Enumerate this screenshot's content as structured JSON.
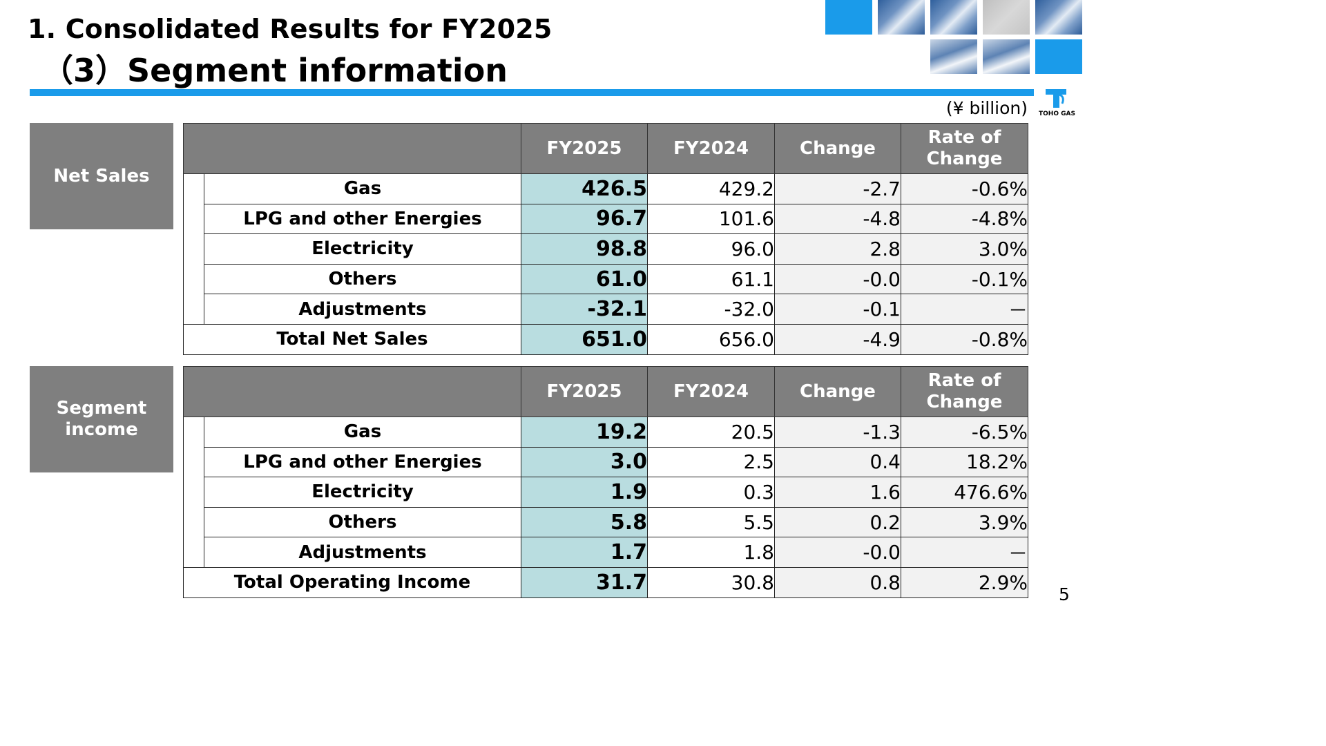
{
  "title": {
    "line1": "1.  Consolidated Results for FY2025",
    "line2": "（3）Segment information"
  },
  "logo": {
    "text": "TOHO GAS",
    "icon": "toho-gas-logo-icon"
  },
  "unit_label": "(¥ billion)",
  "page_number": "5",
  "colors": {
    "accent": "#1a9bea",
    "header_grey": "#7f7f7f",
    "current_year": "#b9dde0",
    "change_bg": "#f2f2f2"
  },
  "net_sales": {
    "label": "Net Sales",
    "headers": [
      "FY2025",
      "FY2024",
      "Change",
      "Rate of Change"
    ],
    "rows": [
      {
        "name": "Gas",
        "fy2025": "426.5",
        "fy2024": "429.2",
        "change": "-2.7",
        "rate": "-0.6%"
      },
      {
        "name": "LPG and other Energies",
        "fy2025": "96.7",
        "fy2024": "101.6",
        "change": "-4.8",
        "rate": "-4.8%"
      },
      {
        "name": "Electricity",
        "fy2025": "98.8",
        "fy2024": "96.0",
        "change": "2.8",
        "rate": "3.0%"
      },
      {
        "name": "Others",
        "fy2025": "61.0",
        "fy2024": "61.1",
        "change": "-0.0",
        "rate": "-0.1%"
      },
      {
        "name": "Adjustments",
        "fy2025": "-32.1",
        "fy2024": "-32.0",
        "change": "-0.1",
        "rate": "－"
      }
    ],
    "total": {
      "name": "Total Net Sales",
      "fy2025": "651.0",
      "fy2024": "656.0",
      "change": "-4.9",
      "rate": "-0.8%"
    }
  },
  "segment_income": {
    "label": "Segment income",
    "headers": [
      "FY2025",
      "FY2024",
      "Change",
      "Rate of Change"
    ],
    "rows": [
      {
        "name": "Gas",
        "fy2025": "19.2",
        "fy2024": "20.5",
        "change": "-1.3",
        "rate": "-6.5%"
      },
      {
        "name": "LPG and other Energies",
        "fy2025": "3.0",
        "fy2024": "2.5",
        "change": "0.4",
        "rate": "18.2%"
      },
      {
        "name": "Electricity",
        "fy2025": "1.9",
        "fy2024": "0.3",
        "change": "1.6",
        "rate": "476.6%"
      },
      {
        "name": "Others",
        "fy2025": "5.8",
        "fy2024": "5.5",
        "change": "0.2",
        "rate": "3.9%"
      },
      {
        "name": "Adjustments",
        "fy2025": "1.7",
        "fy2024": "1.8",
        "change": "-0.0",
        "rate": "－"
      }
    ],
    "total": {
      "name": "Total Operating Income",
      "fy2025": "31.7",
      "fy2024": "30.8",
      "change": "0.8",
      "rate": "2.9%"
    }
  }
}
